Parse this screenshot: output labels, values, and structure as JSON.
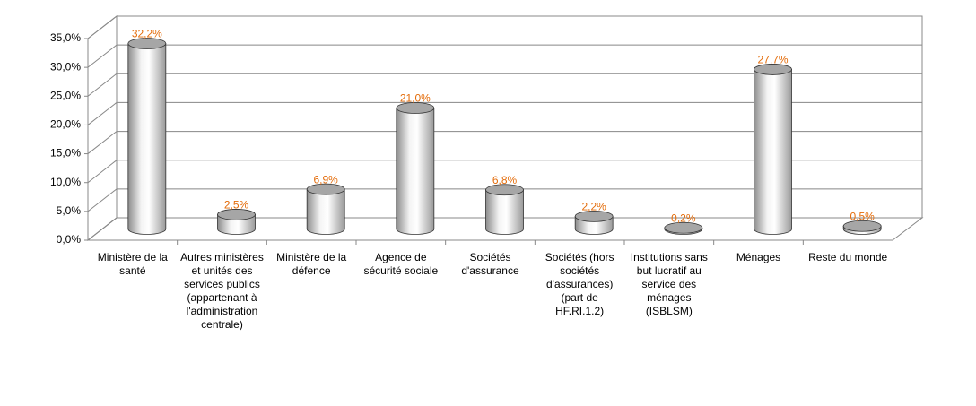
{
  "chart_data": {
    "type": "bar3d",
    "categories": [
      "Ministère de la santé",
      "Autres ministères et unités des services publics (appartenant à l'administration centrale)",
      "Ministère de la défence",
      "Agence de sécurité sociale",
      "Sociétés d'assurance",
      "Sociétés (hors sociétés d'assurances) (part de HF.RI.1.2)",
      "Institutions sans but lucratif au service des ménages (ISBLSM)",
      "Ménages",
      "Reste du monde"
    ],
    "values": [
      32.2,
      2.5,
      6.9,
      21.0,
      6.8,
      2.2,
      0.2,
      27.7,
      0.5
    ],
    "value_labels": [
      "32,2%",
      "2,5%",
      "6,9%",
      "21,0%",
      "6,8%",
      "2,2%",
      "0,2%",
      "27,7%",
      "0,5%"
    ],
    "color": "#d9d9d9",
    "label_color": "#e46c0a",
    "ylim": [
      0,
      35
    ],
    "yticks": [
      {
        "value": 0,
        "label": "0,0%"
      },
      {
        "value": 5,
        "label": "5,0%"
      },
      {
        "value": 10,
        "label": "10,0%"
      },
      {
        "value": 15,
        "label": "15,0%"
      },
      {
        "value": 20,
        "label": "20,0%"
      },
      {
        "value": 25,
        "label": "25,0%"
      },
      {
        "value": 30,
        "label": "30,0%"
      },
      {
        "value": 35,
        "label": "35,0%"
      }
    ],
    "grid": true
  }
}
